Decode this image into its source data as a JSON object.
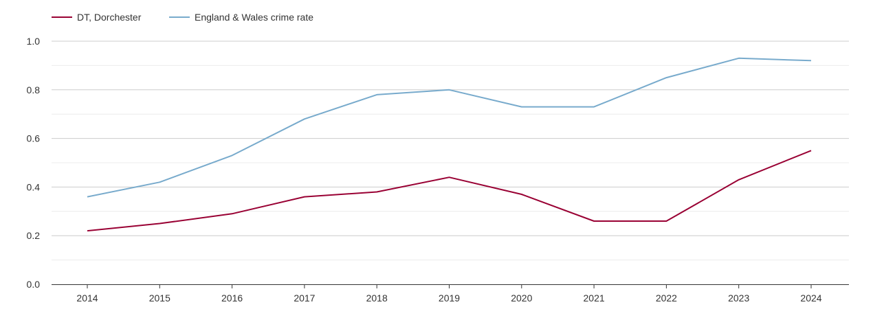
{
  "chart_data": {
    "type": "line",
    "title": "",
    "xlabel": "",
    "ylabel": "",
    "x": [
      "2014",
      "2015",
      "2016",
      "2017",
      "2018",
      "2019",
      "2020",
      "2021",
      "2022",
      "2023",
      "2024"
    ],
    "ylim": [
      0,
      1
    ],
    "yticks": [
      "0.0",
      "0.2",
      "0.4",
      "0.6",
      "0.8",
      "1.0"
    ],
    "grid": true,
    "legend_position": "top-left",
    "series": [
      {
        "name": "DT, Dorchester",
        "color": "#990033",
        "values": [
          0.22,
          0.25,
          0.29,
          0.36,
          0.38,
          0.44,
          0.37,
          0.26,
          0.26,
          0.43,
          0.55
        ]
      },
      {
        "name": "England & Wales crime rate",
        "color": "#77aacc",
        "values": [
          0.36,
          0.42,
          0.53,
          0.68,
          0.78,
          0.8,
          0.73,
          0.73,
          0.85,
          0.93,
          0.92
        ]
      }
    ]
  }
}
